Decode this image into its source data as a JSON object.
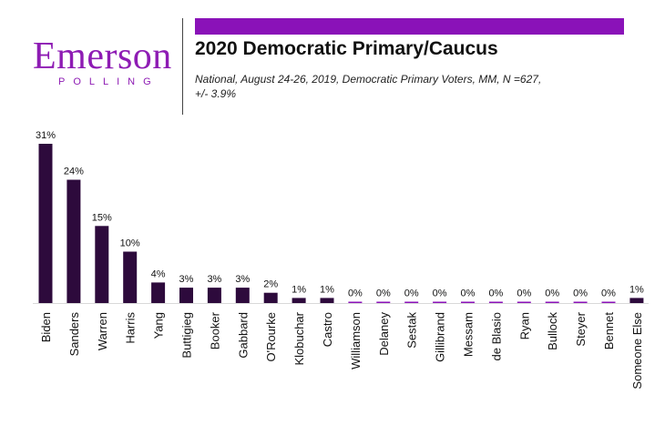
{
  "logo": {
    "word": "Emerson",
    "sub": "POLLING"
  },
  "header": {
    "title": "2020 Democratic Primary/Caucus",
    "subtitle_line1": "National, August 24-26, 2019, Democratic Primary Voters, MM, N =627,",
    "subtitle_line2": "+/- 3.9%"
  },
  "colors": {
    "brand": "#8e1cb4",
    "bar_accent": "#8a12b8",
    "bar": "#2d0a3c"
  },
  "chart_data": {
    "type": "bar",
    "categories": [
      "Biden",
      "Sanders",
      "Warren",
      "Harris",
      "Yang",
      "Buttigieg",
      "Booker",
      "Gabbard",
      "O'Rourke",
      "Klobuchar",
      "Castro",
      "Williamson",
      "Delaney",
      "Sestak",
      "Gillibrand",
      "Messam",
      "de Blasio",
      "Ryan",
      "Bullock",
      "Steyer",
      "Bennet",
      "Someone Else"
    ],
    "values": [
      31,
      24,
      15,
      10,
      4,
      3,
      3,
      3,
      2,
      1,
      1,
      0,
      0,
      0,
      0,
      0,
      0,
      0,
      0,
      0,
      0,
      1
    ],
    "labels": [
      "31%",
      "24%",
      "15%",
      "10%",
      "4%",
      "3%",
      "3%",
      "3%",
      "2%",
      "1%",
      "1%",
      "0%",
      "0%",
      "0%",
      "0%",
      "0%",
      "0%",
      "0%",
      "0%",
      "0%",
      "0%",
      "1%"
    ],
    "ylim": [
      0,
      31
    ],
    "grid": false,
    "legend": "none"
  }
}
